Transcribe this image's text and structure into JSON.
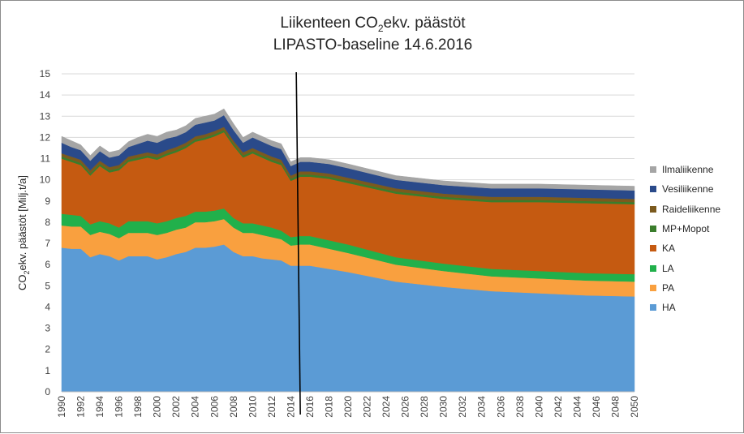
{
  "chart_data": {
    "type": "area",
    "stacked": true,
    "title": "Liikenteen CO2ekv. päästöt",
    "title_parts": {
      "before": "Liikenteen CO",
      "sub": "2",
      "after": "ekv. päästöt"
    },
    "subtitle": "LIPASTO-baseline 14.6.2016",
    "ylabel": "CO2ekv. päästöt [Milj.t/a]",
    "ylabel_parts": {
      "before": "CO",
      "sub": "2",
      "after": "ekv. päästöt [Milj.t/a]"
    },
    "ylim": [
      0,
      15
    ],
    "yticks": [
      0,
      1,
      2,
      3,
      4,
      5,
      6,
      7,
      8,
      9,
      10,
      11,
      12,
      13,
      14,
      15
    ],
    "xticks": [
      1990,
      1992,
      1994,
      1996,
      1998,
      2000,
      2002,
      2004,
      2006,
      2008,
      2010,
      2012,
      2014,
      2016,
      2018,
      2020,
      2022,
      2024,
      2026,
      2028,
      2030,
      2032,
      2034,
      2036,
      2038,
      2040,
      2042,
      2044,
      2046,
      2048,
      2050
    ],
    "x_range": [
      1990,
      2050
    ],
    "grid": true,
    "legend_position": "right",
    "divider_year": 2015,
    "x_key": [
      1990,
      1991,
      1992,
      1993,
      1994,
      1995,
      1996,
      1997,
      1998,
      1999,
      2000,
      2001,
      2002,
      2003,
      2004,
      2005,
      2006,
      2007,
      2008,
      2009,
      2010,
      2011,
      2012,
      2013,
      2014,
      2015,
      2016,
      2018,
      2020,
      2025,
      2030,
      2035,
      2040,
      2045,
      2050
    ],
    "series": [
      {
        "name": "HA",
        "color": "#5b9bd5",
        "values": [
          6.8,
          6.75,
          6.75,
          6.35,
          6.5,
          6.4,
          6.2,
          6.4,
          6.4,
          6.4,
          6.25,
          6.35,
          6.5,
          6.6,
          6.8,
          6.8,
          6.85,
          6.95,
          6.6,
          6.4,
          6.4,
          6.3,
          6.25,
          6.2,
          5.95,
          5.95,
          5.95,
          5.8,
          5.65,
          5.2,
          4.95,
          4.75,
          4.65,
          4.55,
          4.5
        ]
      },
      {
        "name": "PA",
        "color": "#f9a03f",
        "values": [
          1.05,
          1.05,
          1.05,
          1.05,
          1.05,
          1.05,
          1.05,
          1.1,
          1.1,
          1.1,
          1.15,
          1.15,
          1.15,
          1.15,
          1.2,
          1.2,
          1.2,
          1.2,
          1.15,
          1.1,
          1.1,
          1.1,
          1.05,
          1.0,
          0.95,
          1.0,
          1.0,
          0.95,
          0.9,
          0.8,
          0.75,
          0.7,
          0.7,
          0.7,
          0.7
        ]
      },
      {
        "name": "LA",
        "color": "#21b04b",
        "values": [
          0.55,
          0.55,
          0.5,
          0.5,
          0.5,
          0.5,
          0.5,
          0.55,
          0.55,
          0.55,
          0.55,
          0.55,
          0.55,
          0.55,
          0.5,
          0.5,
          0.5,
          0.5,
          0.45,
          0.45,
          0.45,
          0.45,
          0.45,
          0.4,
          0.4,
          0.4,
          0.4,
          0.4,
          0.4,
          0.35,
          0.35,
          0.35,
          0.35,
          0.35,
          0.35
        ]
      },
      {
        "name": "KA",
        "color": "#c55a11",
        "values": [
          2.6,
          2.5,
          2.4,
          2.3,
          2.6,
          2.4,
          2.7,
          2.8,
          2.9,
          3.0,
          3.0,
          3.1,
          3.1,
          3.2,
          3.3,
          3.4,
          3.5,
          3.6,
          3.4,
          3.1,
          3.3,
          3.2,
          3.1,
          3.1,
          2.65,
          2.8,
          2.8,
          2.9,
          2.9,
          3.0,
          3.05,
          3.15,
          3.25,
          3.3,
          3.3
        ]
      },
      {
        "name": "MP+Mopot",
        "color": "#3a7d2c",
        "values": [
          0.1,
          0.1,
          0.1,
          0.1,
          0.1,
          0.1,
          0.1,
          0.1,
          0.1,
          0.1,
          0.1,
          0.1,
          0.1,
          0.1,
          0.1,
          0.1,
          0.1,
          0.1,
          0.1,
          0.1,
          0.1,
          0.1,
          0.1,
          0.1,
          0.1,
          0.1,
          0.1,
          0.1,
          0.1,
          0.1,
          0.1,
          0.1,
          0.1,
          0.1,
          0.1
        ]
      },
      {
        "name": "Raideliikenne",
        "color": "#7b5a1e",
        "values": [
          0.15,
          0.15,
          0.15,
          0.15,
          0.15,
          0.15,
          0.15,
          0.15,
          0.15,
          0.15,
          0.15,
          0.15,
          0.15,
          0.15,
          0.15,
          0.15,
          0.15,
          0.15,
          0.15,
          0.15,
          0.15,
          0.15,
          0.15,
          0.15,
          0.15,
          0.15,
          0.15,
          0.15,
          0.15,
          0.15,
          0.15,
          0.15,
          0.15,
          0.15,
          0.15
        ]
      },
      {
        "name": "Vesiliikenne",
        "color": "#2a4a8a",
        "values": [
          0.5,
          0.45,
          0.45,
          0.45,
          0.45,
          0.45,
          0.45,
          0.45,
          0.5,
          0.55,
          0.55,
          0.55,
          0.5,
          0.5,
          0.55,
          0.55,
          0.5,
          0.55,
          0.5,
          0.45,
          0.5,
          0.5,
          0.5,
          0.5,
          0.45,
          0.45,
          0.45,
          0.45,
          0.45,
          0.4,
          0.4,
          0.4,
          0.4,
          0.4,
          0.4
        ]
      },
      {
        "name": "Ilmaliikenne",
        "color": "#a5a5a5",
        "values": [
          0.3,
          0.3,
          0.25,
          0.25,
          0.25,
          0.25,
          0.25,
          0.25,
          0.3,
          0.3,
          0.3,
          0.3,
          0.3,
          0.3,
          0.3,
          0.3,
          0.3,
          0.3,
          0.3,
          0.25,
          0.25,
          0.25,
          0.25,
          0.25,
          0.2,
          0.2,
          0.2,
          0.2,
          0.2,
          0.2,
          0.2,
          0.2,
          0.2,
          0.2,
          0.2
        ]
      }
    ]
  }
}
